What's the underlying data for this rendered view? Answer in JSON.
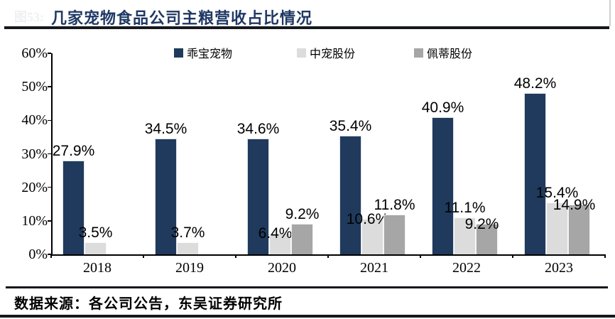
{
  "header": {
    "figure_label": "图53:",
    "title": "几家宠物食品公司主粮营收占比情况",
    "title_color": "#1f3864"
  },
  "chart_data": {
    "type": "bar",
    "title": "几家宠物食品公司主粮营收占比情况",
    "categories": [
      "2018",
      "2019",
      "2020",
      "2021",
      "2022",
      "2023"
    ],
    "series": [
      {
        "name": "乖宝宠物",
        "color": "#1f3a5c",
        "values": [
          27.9,
          34.5,
          34.6,
          35.4,
          40.9,
          48.2
        ]
      },
      {
        "name": "中宠股份",
        "color": "#dcdcdc",
        "values": [
          3.5,
          3.7,
          6.4,
          10.6,
          11.1,
          15.4
        ]
      },
      {
        "name": "佩蒂股份",
        "color": "#a6a6a6",
        "values": [
          null,
          null,
          9.2,
          11.8,
          9.2,
          14.9
        ]
      }
    ],
    "xlabel": "",
    "ylabel": "",
    "ylim": [
      0,
      60
    ],
    "ytick_step": 10,
    "ytick_labels": [
      "0%",
      "10%",
      "20%",
      "30%",
      "40%",
      "50%",
      "60%"
    ],
    "data_labels": [
      "27.9%",
      "34.5%",
      "34.6%",
      "35.4%",
      "40.9%",
      "48.2%",
      "3.5%",
      "3.7%",
      "6.4%",
      "10.6%",
      "11.1%",
      "15.4%",
      "9.2%",
      "11.8%",
      "9.2%",
      "14.9%"
    ],
    "grid": false,
    "legend_position": "top"
  },
  "footer": {
    "source": "数据来源：各公司公告，东吴证券研究所"
  }
}
